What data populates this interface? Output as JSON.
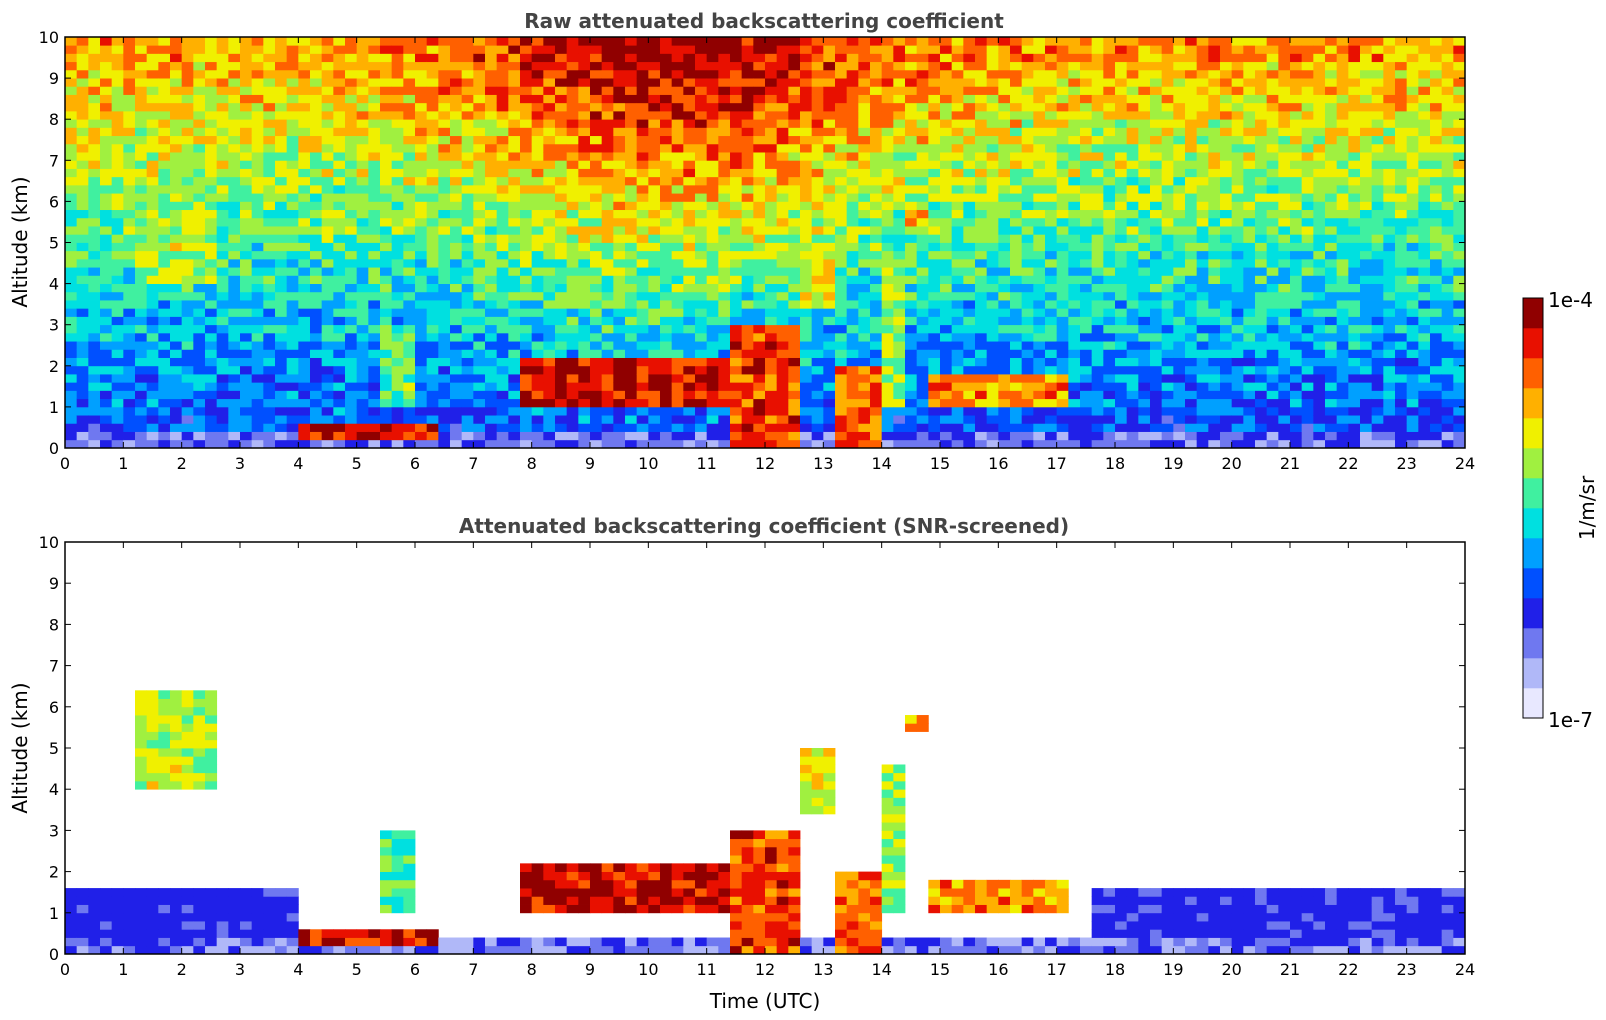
{
  "chart_data": [
    {
      "type": "heatmap",
      "title": "Raw attenuated backscattering coefficient",
      "xlabel": "",
      "ylabel": "Altitude (km)",
      "xlim": [
        0,
        24
      ],
      "ylim": [
        0,
        10
      ],
      "xticks": [
        "0",
        "1",
        "2",
        "3",
        "4",
        "5",
        "6",
        "7",
        "8",
        "9",
        "10",
        "11",
        "12",
        "13",
        "14",
        "15",
        "16",
        "17",
        "18",
        "19",
        "20",
        "21",
        "22",
        "23",
        "24"
      ],
      "yticks": [
        "0",
        "1",
        "2",
        "3",
        "4",
        "5",
        "6",
        "7",
        "8",
        "9",
        "10"
      ],
      "screened": false,
      "features": [
        {
          "name": "boundary-layer",
          "t0": 0,
          "t1": 24,
          "z0": 0,
          "z1": 0.4,
          "level": 0.18
        },
        {
          "name": "cirrus",
          "t0": 1.2,
          "t1": 2.6,
          "z0": 4.0,
          "z1": 6.3,
          "level": 0.62
        },
        {
          "name": "virga",
          "t0": 5.4,
          "t1": 5.9,
          "z0": 1.0,
          "z1": 3.0,
          "level": 0.55
        },
        {
          "name": "aerosol-layer",
          "t0": 4.0,
          "t1": 6.4,
          "z0": 0.25,
          "z1": 0.55,
          "level": 0.9
        },
        {
          "name": "cloud-base",
          "t0": 7.8,
          "t1": 11.5,
          "z0": 1.0,
          "z1": 2.2,
          "level": 0.92
        },
        {
          "name": "convective",
          "t0": 11.5,
          "t1": 12.6,
          "z0": 0,
          "z1": 3.0,
          "level": 0.85
        },
        {
          "name": "mid-cloud",
          "t0": 12.7,
          "t1": 13.2,
          "z0": 3.5,
          "z1": 5.0,
          "level": 0.68
        },
        {
          "name": "convective-2",
          "t0": 13.2,
          "t1": 14.1,
          "z0": 0,
          "z1": 2.0,
          "level": 0.82
        },
        {
          "name": "plume",
          "t0": 14.0,
          "t1": 14.4,
          "z0": 1.0,
          "z1": 4.5,
          "level": 0.6
        },
        {
          "name": "alto-patch",
          "t0": 14.4,
          "t1": 14.8,
          "z0": 5.4,
          "z1": 5.8,
          "level": 0.8
        },
        {
          "name": "low-cloud",
          "t0": 14.8,
          "t1": 17.2,
          "z0": 1.0,
          "z1": 1.8,
          "level": 0.78
        }
      ]
    },
    {
      "type": "heatmap",
      "title": "Attenuated backscattering coefficient (SNR-screened)",
      "xlabel": "Time (UTC)",
      "ylabel": "Altitude (km)",
      "xlim": [
        0,
        24
      ],
      "ylim": [
        0,
        10
      ],
      "xticks": [
        "0",
        "1",
        "2",
        "3",
        "4",
        "5",
        "6",
        "7",
        "8",
        "9",
        "10",
        "11",
        "12",
        "13",
        "14",
        "15",
        "16",
        "17",
        "18",
        "19",
        "20",
        "21",
        "22",
        "23",
        "24"
      ],
      "yticks": [
        "0",
        "1",
        "2",
        "3",
        "4",
        "5",
        "6",
        "7",
        "8",
        "9",
        "10"
      ],
      "screened": true
    }
  ],
  "colorbar": {
    "label": "1/m/sr",
    "max_label": "1e-4",
    "min_label": "1e-7",
    "colormap": [
      "#e8e8ff",
      "#b0b8f8",
      "#6f78f0",
      "#2020e8",
      "#0050ff",
      "#00a0ff",
      "#00e0e0",
      "#40f0a0",
      "#a0f040",
      "#f0f000",
      "#ffb000",
      "#ff6000",
      "#e81000",
      "#900000"
    ]
  }
}
